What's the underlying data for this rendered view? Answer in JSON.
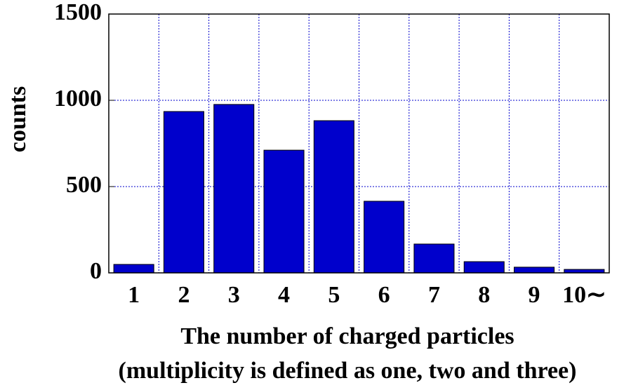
{
  "chart_data": {
    "type": "bar",
    "xlabel": [
      "The number of charged particles",
      "(multiplicity is defined as one, two and three)"
    ],
    "ylabel": "counts",
    "categories": [
      "1",
      "2",
      "3",
      "4",
      "5",
      "6",
      "7",
      "8",
      "9",
      "10∼"
    ],
    "values": [
      49,
      935,
      976,
      711,
      882,
      415,
      167,
      65,
      33,
      20
    ],
    "color": "#0000cc",
    "ylim": [
      0,
      1500
    ],
    "yticks": [
      0,
      500,
      1000,
      1500
    ],
    "grid": true
  }
}
